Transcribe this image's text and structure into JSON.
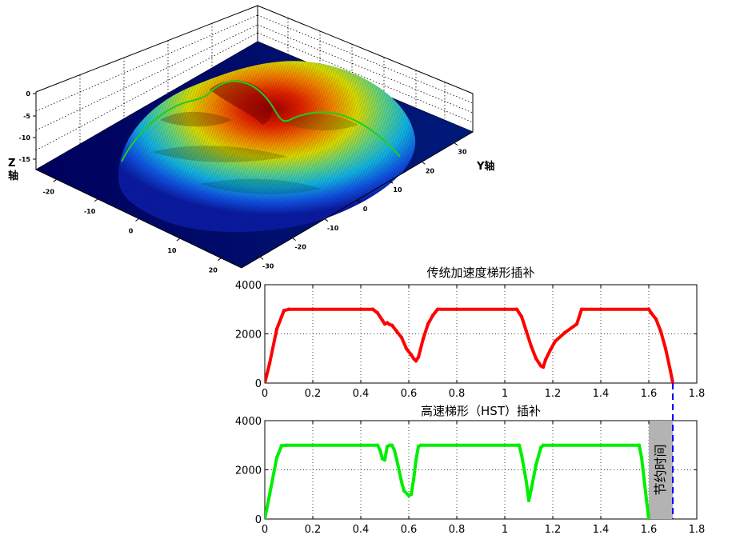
{
  "surface_plot": {
    "type": "surface3d",
    "z_axis_label": "Z轴",
    "y_axis_label": "Y轴",
    "x_ticks": [
      "-20",
      "-10",
      "0",
      "10",
      "20"
    ],
    "y_ticks": [
      "-30",
      "-20",
      "-10",
      "0",
      "10",
      "20",
      "30"
    ],
    "z_ticks": [
      "0",
      "-5",
      "-10",
      "-15"
    ],
    "colormap": "jet",
    "toolpath_color": "#22cc22"
  },
  "chart_data": [
    {
      "type": "line",
      "title": "传统加速度梯形插补",
      "xlim": [
        0,
        1.8
      ],
      "ylim": [
        0,
        4000
      ],
      "x_ticks": [
        "0",
        "0.2",
        "0.4",
        "0.6",
        "0.8",
        "1",
        "1.2",
        "1.4",
        "1.6",
        "1.8"
      ],
      "y_ticks": [
        "0",
        "2000",
        "4000"
      ],
      "grid": true,
      "color": "#ff0000",
      "x": [
        0,
        0.02,
        0.05,
        0.08,
        0.1,
        0.45,
        0.47,
        0.49,
        0.5,
        0.51,
        0.52,
        0.53,
        0.55,
        0.57,
        0.59,
        0.61,
        0.62,
        0.63,
        0.64,
        0.66,
        0.68,
        0.7,
        0.72,
        1.05,
        1.07,
        1.09,
        1.11,
        1.13,
        1.15,
        1.16,
        1.17,
        1.19,
        1.21,
        1.25,
        1.3,
        1.32,
        1.6,
        1.61,
        1.63,
        1.65,
        1.67,
        1.69,
        1.7
      ],
      "y": [
        0,
        800,
        2200,
        2950,
        3000,
        3000,
        2850,
        2550,
        2400,
        2450,
        2380,
        2350,
        2100,
        1850,
        1400,
        1150,
        1000,
        900,
        1050,
        1800,
        2400,
        2750,
        3000,
        3000,
        2700,
        2100,
        1500,
        1000,
        700,
        650,
        950,
        1350,
        1700,
        2050,
        2400,
        3000,
        3000,
        2850,
        2600,
        2100,
        1400,
        500,
        0
      ]
    },
    {
      "type": "line",
      "title": "高速梯形（HST）插补",
      "xlim": [
        0,
        1.8
      ],
      "ylim": [
        0,
        4000
      ],
      "x_ticks": [
        "0",
        "0.2",
        "0.4",
        "0.6",
        "0.8",
        "1",
        "1.2",
        "1.4",
        "1.6",
        "1.8"
      ],
      "y_ticks": [
        "0",
        "2000",
        "4000"
      ],
      "grid": true,
      "color": "#00ee00",
      "x": [
        0,
        0.02,
        0.05,
        0.07,
        0.09,
        0.47,
        0.48,
        0.49,
        0.5,
        0.51,
        0.52,
        0.53,
        0.54,
        0.55,
        0.57,
        0.58,
        0.6,
        0.61,
        0.62,
        0.63,
        0.64,
        0.65,
        1.06,
        1.07,
        1.09,
        1.1,
        1.11,
        1.13,
        1.15,
        1.16,
        1.56,
        1.57,
        1.59,
        1.6
      ],
      "y": [
        0,
        1000,
        2500,
        2980,
        3000,
        3000,
        2800,
        2450,
        2400,
        2950,
        3000,
        3000,
        2800,
        2400,
        1500,
        1150,
        950,
        1000,
        1600,
        2400,
        2950,
        3000,
        3000,
        2600,
        1500,
        750,
        1200,
        2200,
        2900,
        3000,
        3000,
        2500,
        800,
        0
      ],
      "saved_time": {
        "label": "节约时间",
        "x_start": 1.6,
        "x_end": 1.7,
        "color": "#b3b3b3"
      },
      "marker_line": {
        "x": 1.7,
        "color": "#0000ff",
        "style": "dashed"
      }
    }
  ]
}
